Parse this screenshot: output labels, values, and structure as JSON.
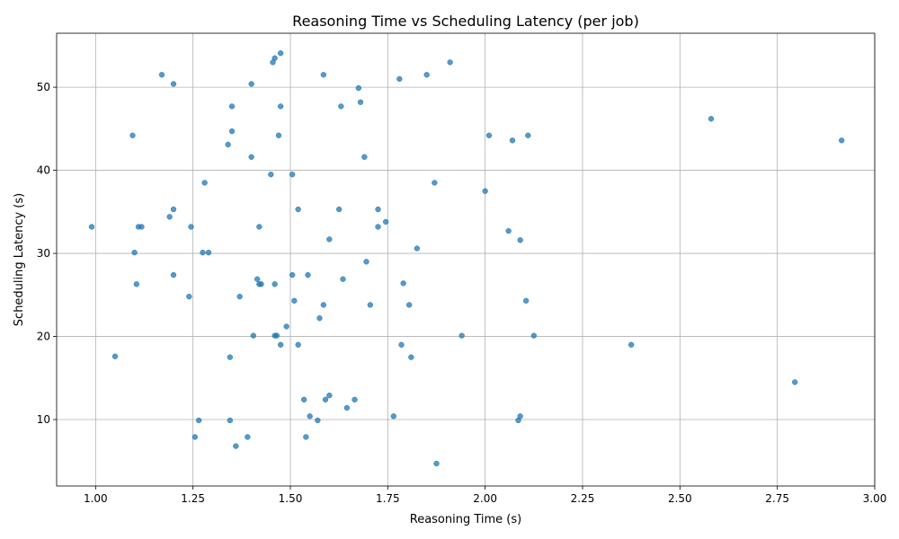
{
  "chart_data": {
    "type": "scatter",
    "title": "Reasoning Time vs Scheduling Latency (per job)",
    "xlabel": "Reasoning Time (s)",
    "ylabel": "Scheduling Latency (s)",
    "xlim": [
      0.9,
      3.0
    ],
    "ylim": [
      2.0,
      56.5
    ],
    "xticks": [
      1.0,
      1.25,
      1.5,
      1.75,
      2.0,
      2.25,
      2.5,
      2.75,
      3.0
    ],
    "xtick_labels": [
      "1.00",
      "1.25",
      "1.50",
      "1.75",
      "2.00",
      "2.25",
      "2.50",
      "2.75",
      "3.00"
    ],
    "yticks": [
      10,
      20,
      30,
      40,
      50
    ],
    "ytick_labels": [
      "10",
      "20",
      "30",
      "40",
      "50"
    ],
    "grid": true,
    "marker_color": "#1f77b4",
    "marker_alpha": 0.75,
    "points": [
      {
        "x": 1.17,
        "y": 51.5
      },
      {
        "x": 1.2,
        "y": 50.4
      },
      {
        "x": 1.46,
        "y": 53.5
      },
      {
        "x": 1.475,
        "y": 54.1
      },
      {
        "x": 1.455,
        "y": 53.0
      },
      {
        "x": 1.4,
        "y": 50.4
      },
      {
        "x": 1.585,
        "y": 51.5
      },
      {
        "x": 1.675,
        "y": 49.9
      },
      {
        "x": 1.78,
        "y": 51.0
      },
      {
        "x": 1.85,
        "y": 51.5
      },
      {
        "x": 1.91,
        "y": 53.0
      },
      {
        "x": 1.35,
        "y": 47.7
      },
      {
        "x": 1.475,
        "y": 47.7
      },
      {
        "x": 1.63,
        "y": 47.7
      },
      {
        "x": 1.68,
        "y": 48.2
      },
      {
        "x": 1.095,
        "y": 44.2
      },
      {
        "x": 1.35,
        "y": 44.7
      },
      {
        "x": 1.47,
        "y": 44.2
      },
      {
        "x": 1.34,
        "y": 43.1
      },
      {
        "x": 2.01,
        "y": 44.2
      },
      {
        "x": 2.07,
        "y": 43.6
      },
      {
        "x": 2.11,
        "y": 44.2
      },
      {
        "x": 2.58,
        "y": 46.2
      },
      {
        "x": 2.915,
        "y": 43.6
      },
      {
        "x": 1.4,
        "y": 41.6
      },
      {
        "x": 1.69,
        "y": 41.6
      },
      {
        "x": 1.45,
        "y": 39.5
      },
      {
        "x": 1.505,
        "y": 39.5
      },
      {
        "x": 1.28,
        "y": 38.5
      },
      {
        "x": 1.87,
        "y": 38.5
      },
      {
        "x": 2.0,
        "y": 37.5
      },
      {
        "x": 1.2,
        "y": 35.3
      },
      {
        "x": 1.52,
        "y": 35.3
      },
      {
        "x": 1.625,
        "y": 35.3
      },
      {
        "x": 1.725,
        "y": 35.3
      },
      {
        "x": 1.19,
        "y": 34.4
      },
      {
        "x": 1.745,
        "y": 33.8
      },
      {
        "x": 0.99,
        "y": 33.2
      },
      {
        "x": 1.11,
        "y": 33.2
      },
      {
        "x": 1.118,
        "y": 33.2
      },
      {
        "x": 1.245,
        "y": 33.2
      },
      {
        "x": 1.42,
        "y": 33.2
      },
      {
        "x": 1.725,
        "y": 33.2
      },
      {
        "x": 2.06,
        "y": 32.7
      },
      {
        "x": 1.6,
        "y": 31.7
      },
      {
        "x": 2.09,
        "y": 31.6
      },
      {
        "x": 1.825,
        "y": 30.6
      },
      {
        "x": 1.1,
        "y": 30.1
      },
      {
        "x": 1.275,
        "y": 30.1
      },
      {
        "x": 1.29,
        "y": 30.1
      },
      {
        "x": 1.695,
        "y": 29.0
      },
      {
        "x": 1.2,
        "y": 27.4
      },
      {
        "x": 1.505,
        "y": 27.4
      },
      {
        "x": 1.545,
        "y": 27.4
      },
      {
        "x": 1.415,
        "y": 26.9
      },
      {
        "x": 1.635,
        "y": 26.9
      },
      {
        "x": 1.105,
        "y": 26.3
      },
      {
        "x": 1.42,
        "y": 26.3
      },
      {
        "x": 1.425,
        "y": 26.3
      },
      {
        "x": 1.46,
        "y": 26.3
      },
      {
        "x": 1.79,
        "y": 26.4
      },
      {
        "x": 1.24,
        "y": 24.8
      },
      {
        "x": 1.37,
        "y": 24.8
      },
      {
        "x": 1.51,
        "y": 24.3
      },
      {
        "x": 2.105,
        "y": 24.3
      },
      {
        "x": 1.585,
        "y": 23.8
      },
      {
        "x": 1.705,
        "y": 23.8
      },
      {
        "x": 1.805,
        "y": 23.8
      },
      {
        "x": 1.575,
        "y": 22.2
      },
      {
        "x": 1.49,
        "y": 21.2
      },
      {
        "x": 1.405,
        "y": 20.1
      },
      {
        "x": 1.46,
        "y": 20.1
      },
      {
        "x": 1.465,
        "y": 20.1
      },
      {
        "x": 1.94,
        "y": 20.1
      },
      {
        "x": 2.125,
        "y": 20.1
      },
      {
        "x": 1.475,
        "y": 19.0
      },
      {
        "x": 1.52,
        "y": 19.0
      },
      {
        "x": 1.785,
        "y": 19.0
      },
      {
        "x": 2.375,
        "y": 19.0
      },
      {
        "x": 1.05,
        "y": 17.6
      },
      {
        "x": 1.345,
        "y": 17.5
      },
      {
        "x": 1.81,
        "y": 17.5
      },
      {
        "x": 2.795,
        "y": 14.5
      },
      {
        "x": 1.6,
        "y": 12.9
      },
      {
        "x": 1.535,
        "y": 12.4
      },
      {
        "x": 1.59,
        "y": 12.4
      },
      {
        "x": 1.665,
        "y": 12.4
      },
      {
        "x": 1.645,
        "y": 11.4
      },
      {
        "x": 1.55,
        "y": 10.4
      },
      {
        "x": 1.765,
        "y": 10.4
      },
      {
        "x": 2.09,
        "y": 10.4
      },
      {
        "x": 1.265,
        "y": 9.9
      },
      {
        "x": 1.345,
        "y": 9.9
      },
      {
        "x": 1.57,
        "y": 9.9
      },
      {
        "x": 2.085,
        "y": 9.9
      },
      {
        "x": 1.255,
        "y": 7.9
      },
      {
        "x": 1.39,
        "y": 7.9
      },
      {
        "x": 1.54,
        "y": 7.9
      },
      {
        "x": 1.36,
        "y": 6.8
      },
      {
        "x": 1.875,
        "y": 4.7
      }
    ]
  }
}
